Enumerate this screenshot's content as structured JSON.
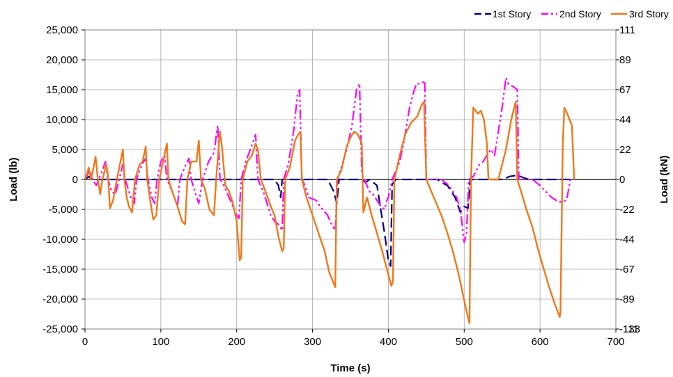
{
  "chart_data": {
    "type": "line",
    "title": "",
    "xlabel": "Time (s)",
    "ylabel": "Load (lb)",
    "y2label": "Load (kN)",
    "xlim": [
      0,
      700
    ],
    "ylim": [
      -25000,
      25000
    ],
    "grid": true,
    "legend_position": "top-right",
    "x_ticks": [
      "0",
      "100",
      "200",
      "300",
      "400",
      "500",
      "600",
      "700"
    ],
    "x_tick_values": [
      0,
      100,
      200,
      300,
      400,
      500,
      600,
      700
    ],
    "y_ticks": [
      "-25,000",
      "-20,000",
      "-15,000",
      "-10,000",
      "-5,000",
      "0",
      "5,000",
      "10,000",
      "15,000",
      "20,000",
      "25,000"
    ],
    "y_tick_values": [
      -25000,
      -20000,
      -15000,
      -10000,
      -5000,
      0,
      5000,
      10000,
      15000,
      20000,
      25000
    ],
    "y2_ticks": [
      "-133",
      "-111",
      "-89",
      "-67",
      "-44",
      "-22",
      "0",
      "22",
      "44",
      "67",
      "89",
      "111"
    ],
    "y2_tick_values": [
      -30000,
      -25000,
      -20000,
      -15000,
      -10000,
      -5000,
      0,
      5000,
      10000,
      15000,
      20000,
      25000
    ],
    "series": [
      {
        "name": "1st Story",
        "color": "#000080",
        "dash": "14,6",
        "points": [
          [
            0,
            0
          ],
          [
            5,
            500
          ],
          [
            10,
            -100
          ],
          [
            20,
            0
          ],
          [
            50,
            0
          ],
          [
            100,
            0
          ],
          [
            150,
            0
          ],
          [
            200,
            0
          ],
          [
            210,
            0
          ],
          [
            220,
            0
          ],
          [
            250,
            0
          ],
          [
            255,
            -1000
          ],
          [
            258,
            -3000
          ],
          [
            260,
            0
          ],
          [
            280,
            0
          ],
          [
            300,
            0
          ],
          [
            320,
            0
          ],
          [
            328,
            -2000
          ],
          [
            332,
            -4000
          ],
          [
            335,
            0
          ],
          [
            350,
            0
          ],
          [
            365,
            0
          ],
          [
            370,
            -500
          ],
          [
            375,
            0
          ],
          [
            385,
            -1000
          ],
          [
            390,
            -5000
          ],
          [
            395,
            -9000
          ],
          [
            400,
            -13500
          ],
          [
            403,
            -14500
          ],
          [
            405,
            -800
          ],
          [
            410,
            0
          ],
          [
            450,
            0
          ],
          [
            465,
            0
          ],
          [
            470,
            -500
          ],
          [
            478,
            -1000
          ],
          [
            488,
            -3000
          ],
          [
            495,
            -5500
          ],
          [
            500,
            -4500
          ],
          [
            505,
            -4800
          ],
          [
            508,
            0
          ],
          [
            530,
            0
          ],
          [
            550,
            0
          ],
          [
            560,
            500
          ],
          [
            570,
            700
          ],
          [
            578,
            300
          ],
          [
            585,
            0
          ],
          [
            600,
            0
          ],
          [
            630,
            0
          ],
          [
            645,
            0
          ]
        ]
      },
      {
        "name": "2nd Story",
        "color": "#ff00ff",
        "dash": "14,4,3,4,3,4",
        "points": [
          [
            0,
            0
          ],
          [
            3,
            800
          ],
          [
            6,
            1500
          ],
          [
            10,
            0
          ],
          [
            15,
            -1000
          ],
          [
            18,
            0
          ],
          [
            23,
            1500
          ],
          [
            27,
            3000
          ],
          [
            30,
            200
          ],
          [
            35,
            -2000
          ],
          [
            40,
            -2500
          ],
          [
            45,
            0
          ],
          [
            50,
            2500
          ],
          [
            53,
            0
          ],
          [
            58,
            -2000
          ],
          [
            62,
            -3500
          ],
          [
            65,
            -4000
          ],
          [
            68,
            0
          ],
          [
            75,
            2500
          ],
          [
            80,
            3500
          ],
          [
            83,
            0
          ],
          [
            88,
            -3000
          ],
          [
            92,
            -4000
          ],
          [
            95,
            0
          ],
          [
            100,
            3000
          ],
          [
            105,
            4000
          ],
          [
            108,
            0
          ],
          [
            115,
            -2000
          ],
          [
            122,
            -4500
          ],
          [
            125,
            0
          ],
          [
            133,
            2500
          ],
          [
            137,
            3500
          ],
          [
            140,
            0
          ],
          [
            145,
            -2000
          ],
          [
            150,
            -4000
          ],
          [
            155,
            0
          ],
          [
            163,
            3000
          ],
          [
            170,
            4500
          ],
          [
            175,
            9000
          ],
          [
            178,
            0
          ],
          [
            183,
            -1000
          ],
          [
            190,
            -3000
          ],
          [
            195,
            -4500
          ],
          [
            200,
            -6000
          ],
          [
            203,
            -6500
          ],
          [
            206,
            0
          ],
          [
            212,
            3000
          ],
          [
            218,
            5000
          ],
          [
            225,
            7500
          ],
          [
            228,
            0
          ],
          [
            235,
            -2000
          ],
          [
            240,
            -4000
          ],
          [
            245,
            -6000
          ],
          [
            250,
            -7000
          ],
          [
            255,
            -7500
          ],
          [
            260,
            -8500
          ],
          [
            262,
            0
          ],
          [
            268,
            2500
          ],
          [
            275,
            8000
          ],
          [
            280,
            14000
          ],
          [
            283,
            15000
          ],
          [
            286,
            0
          ],
          [
            290,
            -1000
          ],
          [
            295,
            -3000
          ],
          [
            305,
            -3500
          ],
          [
            310,
            -4500
          ],
          [
            320,
            -6000
          ],
          [
            325,
            -7500
          ],
          [
            330,
            -8500
          ],
          [
            333,
            0
          ],
          [
            338,
            2000
          ],
          [
            345,
            5000
          ],
          [
            352,
            9000
          ],
          [
            358,
            15000
          ],
          [
            362,
            16000
          ],
          [
            365,
            1000
          ],
          [
            370,
            -500
          ],
          [
            375,
            -2000
          ],
          [
            380,
            -2500
          ],
          [
            385,
            -3500
          ],
          [
            390,
            -4500
          ],
          [
            395,
            -5000
          ],
          [
            398,
            -3500
          ],
          [
            400,
            -3000
          ],
          [
            405,
            0
          ],
          [
            415,
            3000
          ],
          [
            420,
            6000
          ],
          [
            428,
            12000
          ],
          [
            433,
            14500
          ],
          [
            437,
            16000
          ],
          [
            443,
            16000
          ],
          [
            448,
            16500
          ],
          [
            450,
            0
          ],
          [
            470,
            0
          ],
          [
            480,
            -1000
          ],
          [
            490,
            -3000
          ],
          [
            495,
            -5000
          ],
          [
            500,
            -10500
          ],
          [
            503,
            -9000
          ],
          [
            506,
            0
          ],
          [
            512,
            500
          ],
          [
            520,
            2500
          ],
          [
            525,
            3000
          ],
          [
            530,
            4000
          ],
          [
            535,
            5000
          ],
          [
            540,
            4000
          ],
          [
            545,
            8000
          ],
          [
            550,
            12000
          ],
          [
            555,
            17000
          ],
          [
            558,
            16000
          ],
          [
            565,
            15500
          ],
          [
            570,
            15000
          ],
          [
            572,
            0
          ],
          [
            590,
            0
          ],
          [
            600,
            -1000
          ],
          [
            615,
            -3000
          ],
          [
            625,
            -3800
          ],
          [
            635,
            -3500
          ],
          [
            640,
            0
          ],
          [
            645,
            0
          ]
        ]
      },
      {
        "name": "3rd Story",
        "color": "#f07818",
        "dash": "",
        "points": [
          [
            0,
            0
          ],
          [
            3,
            1200
          ],
          [
            5,
            2000
          ],
          [
            8,
            0
          ],
          [
            12,
            2500
          ],
          [
            14,
            3800
          ],
          [
            17,
            0
          ],
          [
            20,
            -2500
          ],
          [
            23,
            0
          ],
          [
            28,
            2500
          ],
          [
            30,
            1000
          ],
          [
            33,
            -4800
          ],
          [
            37,
            -3500
          ],
          [
            42,
            0
          ],
          [
            46,
            2500
          ],
          [
            50,
            5000
          ],
          [
            52,
            0
          ],
          [
            55,
            -3000
          ],
          [
            58,
            -4500
          ],
          [
            62,
            -5500
          ],
          [
            66,
            0
          ],
          [
            72,
            2500
          ],
          [
            76,
            3000
          ],
          [
            80,
            5500
          ],
          [
            82,
            0
          ],
          [
            86,
            -3500
          ],
          [
            90,
            -6700
          ],
          [
            94,
            -6000
          ],
          [
            98,
            0
          ],
          [
            103,
            3000
          ],
          [
            108,
            6000
          ],
          [
            110,
            0
          ],
          [
            115,
            -2000
          ],
          [
            122,
            -4500
          ],
          [
            128,
            -7000
          ],
          [
            132,
            -7500
          ],
          [
            135,
            0
          ],
          [
            140,
            3000
          ],
          [
            147,
            3000
          ],
          [
            150,
            6500
          ],
          [
            153,
            0
          ],
          [
            158,
            -1500
          ],
          [
            164,
            -5000
          ],
          [
            170,
            -6000
          ],
          [
            173,
            0
          ],
          [
            176,
            5000
          ],
          [
            178,
            8000
          ],
          [
            181,
            5000
          ],
          [
            185,
            -1000
          ],
          [
            190,
            -2000
          ],
          [
            195,
            -4000
          ],
          [
            200,
            -7000
          ],
          [
            204,
            -13500
          ],
          [
            206,
            -13000
          ],
          [
            208,
            0
          ],
          [
            214,
            3000
          ],
          [
            220,
            4000
          ],
          [
            225,
            6000
          ],
          [
            228,
            5000
          ],
          [
            232,
            0
          ],
          [
            238,
            -2000
          ],
          [
            245,
            -4500
          ],
          [
            250,
            -6000
          ],
          [
            255,
            -9500
          ],
          [
            260,
            -12000
          ],
          [
            262,
            -11500
          ],
          [
            264,
            0
          ],
          [
            270,
            2000
          ],
          [
            277,
            6500
          ],
          [
            281,
            7500
          ],
          [
            284,
            8000
          ],
          [
            286,
            0
          ],
          [
            292,
            -3000
          ],
          [
            300,
            -6000
          ],
          [
            308,
            -9000
          ],
          [
            316,
            -12000
          ],
          [
            322,
            -15500
          ],
          [
            330,
            -18000
          ],
          [
            332,
            0
          ],
          [
            338,
            1500
          ],
          [
            345,
            5500
          ],
          [
            350,
            7000
          ],
          [
            355,
            8000
          ],
          [
            360,
            7500
          ],
          [
            365,
            6000
          ],
          [
            367,
            -5500
          ],
          [
            372,
            -3000
          ],
          [
            378,
            -6000
          ],
          [
            385,
            -9000
          ],
          [
            392,
            -12000
          ],
          [
            398,
            -15000
          ],
          [
            404,
            -17800
          ],
          [
            406,
            -17000
          ],
          [
            408,
            0
          ],
          [
            415,
            4000
          ],
          [
            422,
            7500
          ],
          [
            430,
            9500
          ],
          [
            438,
            10500
          ],
          [
            444,
            12500
          ],
          [
            447,
            13000
          ],
          [
            450,
            0
          ],
          [
            460,
            -3000
          ],
          [
            470,
            -6000
          ],
          [
            478,
            -9000
          ],
          [
            485,
            -12000
          ],
          [
            492,
            -15500
          ],
          [
            498,
            -19000
          ],
          [
            503,
            -22000
          ],
          [
            507,
            -24000
          ],
          [
            509,
            0
          ],
          [
            512,
            12000
          ],
          [
            518,
            11000
          ],
          [
            522,
            11500
          ],
          [
            526,
            10000
          ],
          [
            530,
            6000
          ],
          [
            532,
            0
          ],
          [
            545,
            0
          ],
          [
            555,
            5000
          ],
          [
            562,
            10000
          ],
          [
            566,
            12000
          ],
          [
            568,
            13000
          ],
          [
            570,
            0
          ],
          [
            575,
            -2000
          ],
          [
            582,
            -5000
          ],
          [
            590,
            -8000
          ],
          [
            598,
            -12000
          ],
          [
            605,
            -15000
          ],
          [
            612,
            -18000
          ],
          [
            620,
            -21000
          ],
          [
            626,
            -23000
          ],
          [
            627,
            -22000
          ],
          [
            630,
            6000
          ],
          [
            632,
            12000
          ],
          [
            636,
            11000
          ],
          [
            642,
            9000
          ],
          [
            645,
            0
          ]
        ]
      }
    ]
  }
}
